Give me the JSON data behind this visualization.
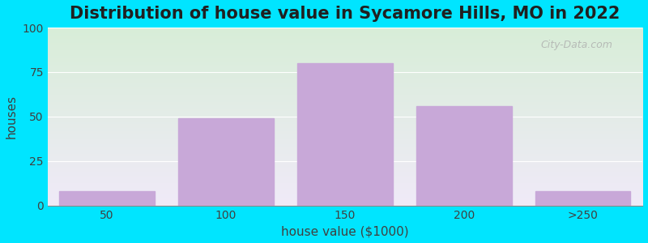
{
  "title": "Distribution of house value in Sycamore Hills, MO in 2022",
  "xlabel": "house value ($1000)",
  "ylabel": "houses",
  "bar_labels": [
    "50",
    "100",
    "150",
    "200",
    ">250"
  ],
  "bar_heights": [
    8,
    49,
    80,
    56,
    8
  ],
  "bar_color": "#c8a8d8",
  "ylim": [
    0,
    100
  ],
  "yticks": [
    0,
    25,
    50,
    75,
    100
  ],
  "outer_bg": "#00e5ff",
  "plot_bg_top": "#d8eed8",
  "plot_bg_bottom": "#f0eaf8",
  "title_fontsize": 15,
  "axis_label_fontsize": 11,
  "tick_fontsize": 10,
  "bar_width": 0.8,
  "watermark_text": "City-Data.com"
}
